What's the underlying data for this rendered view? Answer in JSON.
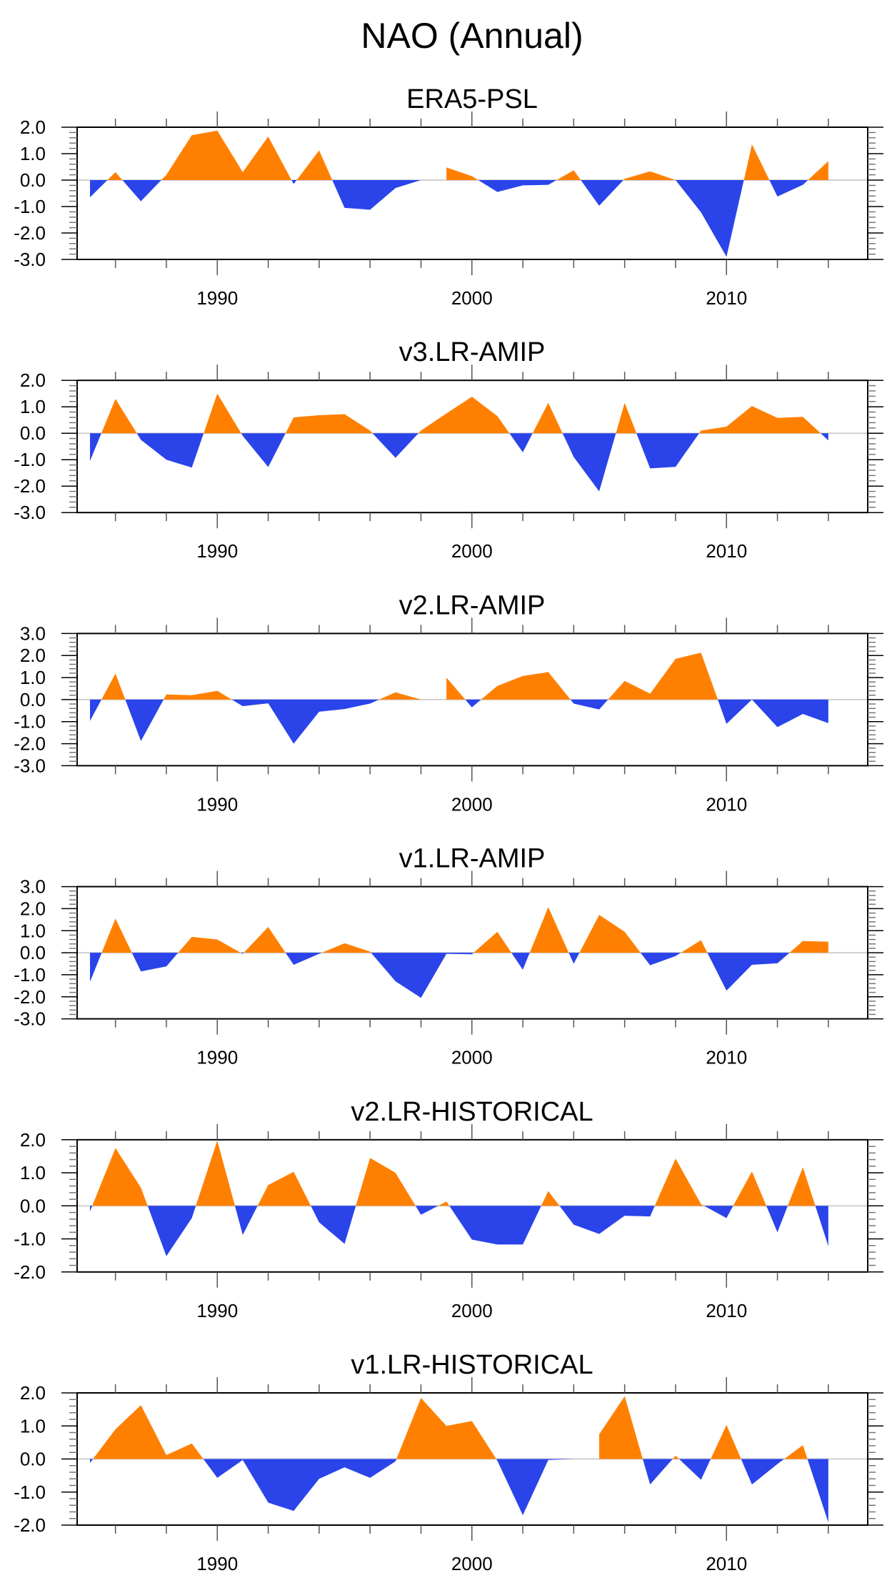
{
  "chart_data": {
    "type": "area",
    "title": "NAO (Annual)",
    "x": [
      1985,
      1986,
      1987,
      1988,
      1989,
      1990,
      1991,
      1992,
      1993,
      1994,
      1995,
      1996,
      1997,
      1998,
      1999,
      2000,
      2001,
      2002,
      2003,
      2004,
      2005,
      2006,
      2007,
      2008,
      2009,
      2010,
      2011,
      2012,
      2013,
      2014
    ],
    "xlim": [
      1984.5,
      2015.5
    ],
    "xticks_major": [
      1990,
      2000,
      2010
    ],
    "xtick_labels": [
      "1990",
      "2000",
      "2010"
    ],
    "colors": {
      "positive": "#ff8000",
      "negative": "#2a44ea",
      "zero_line": "#d0d0d0"
    },
    "panels": [
      {
        "title": "ERA5-PSL",
        "ylim": [
          -3.0,
          2.0
        ],
        "yticks": [
          "2.0",
          "1.0",
          "0.0",
          "-1.0",
          "-2.0",
          "-3.0"
        ],
        "values": [
          -0.65,
          0.3,
          -0.8,
          0.2,
          1.7,
          1.87,
          0.3,
          1.65,
          -0.15,
          1.12,
          -1.05,
          -1.12,
          -0.3,
          0.0,
          0.48,
          0.15,
          -0.45,
          -0.2,
          -0.18,
          0.37,
          -0.97,
          0.05,
          0.33,
          0.0,
          -1.22,
          -2.9,
          1.35,
          -0.62,
          -0.18,
          0.72
        ]
      },
      {
        "title": "v3.LR-AMIP",
        "ylim": [
          -3.0,
          2.0
        ],
        "yticks": [
          "2.0",
          "1.0",
          "0.0",
          "-1.0",
          "-2.0",
          "-3.0"
        ],
        "values": [
          -1.05,
          1.3,
          -0.25,
          -1.0,
          -1.3,
          1.5,
          -0.1,
          -1.28,
          0.6,
          0.68,
          0.72,
          0.1,
          -0.93,
          0.1,
          0.75,
          1.38,
          0.65,
          -0.72,
          1.15,
          -0.9,
          -2.2,
          1.15,
          -1.33,
          -1.27,
          0.1,
          0.25,
          1.03,
          0.58,
          0.62,
          -0.27
        ]
      },
      {
        "title": "v2.LR-AMIP",
        "ylim": [
          -3.0,
          3.0
        ],
        "yticks": [
          "3.0",
          "2.0",
          "1.0",
          "0.0",
          "-1.0",
          "-2.0",
          "-3.0"
        ],
        "values": [
          -0.97,
          1.18,
          -1.88,
          0.23,
          0.2,
          0.4,
          -0.3,
          -0.17,
          -2.0,
          -0.55,
          -0.43,
          -0.18,
          0.33,
          0.0,
          1.0,
          -0.35,
          0.62,
          1.07,
          1.25,
          -0.18,
          -0.45,
          0.85,
          0.27,
          1.85,
          2.13,
          -1.1,
          0.0,
          -1.25,
          -0.65,
          -1.07
        ]
      },
      {
        "title": "v1.LR-AMIP",
        "ylim": [
          -3.0,
          3.0
        ],
        "yticks": [
          "3.0",
          "2.0",
          "1.0",
          "0.0",
          "-1.0",
          "-2.0",
          "-3.0"
        ],
        "values": [
          -1.32,
          1.55,
          -0.85,
          -0.62,
          0.72,
          0.6,
          -0.05,
          1.17,
          -0.55,
          -0.05,
          0.43,
          0.05,
          -1.3,
          -2.05,
          -0.05,
          -0.07,
          0.95,
          -0.77,
          2.07,
          -0.5,
          1.72,
          0.95,
          -0.57,
          -0.15,
          0.57,
          -1.72,
          -0.55,
          -0.48,
          0.53,
          0.5
        ]
      },
      {
        "title": "v2.LR-HISTORICAL",
        "ylim": [
          -2.0,
          2.0
        ],
        "yticks": [
          "2.0",
          "1.0",
          "0.0",
          "-1.0",
          "-2.0"
        ],
        "values": [
          -0.17,
          1.75,
          0.55,
          -1.52,
          -0.37,
          1.98,
          -0.88,
          0.63,
          1.03,
          -0.5,
          -1.15,
          1.45,
          1.0,
          -0.27,
          0.13,
          -1.02,
          -1.17,
          -1.17,
          0.45,
          -0.57,
          -0.85,
          -0.3,
          -0.32,
          1.43,
          0.05,
          -0.37,
          1.04,
          -0.8,
          1.17,
          -1.22
        ]
      },
      {
        "title": "v1.LR-HISTORICAL",
        "ylim": [
          -2.0,
          2.0
        ],
        "yticks": [
          "2.0",
          "1.0",
          "0.0",
          "-1.0",
          "-2.0"
        ],
        "values": [
          -0.12,
          0.9,
          1.63,
          0.12,
          0.47,
          -0.57,
          -0.03,
          -1.32,
          -1.57,
          -0.6,
          -0.25,
          -0.57,
          -0.07,
          1.85,
          1.0,
          1.15,
          -0.05,
          -1.7,
          -0.03,
          0.0,
          0.75,
          1.9,
          -0.77,
          0.1,
          -0.63,
          1.03,
          -0.77,
          -0.15,
          0.42,
          -1.92
        ]
      }
    ]
  }
}
